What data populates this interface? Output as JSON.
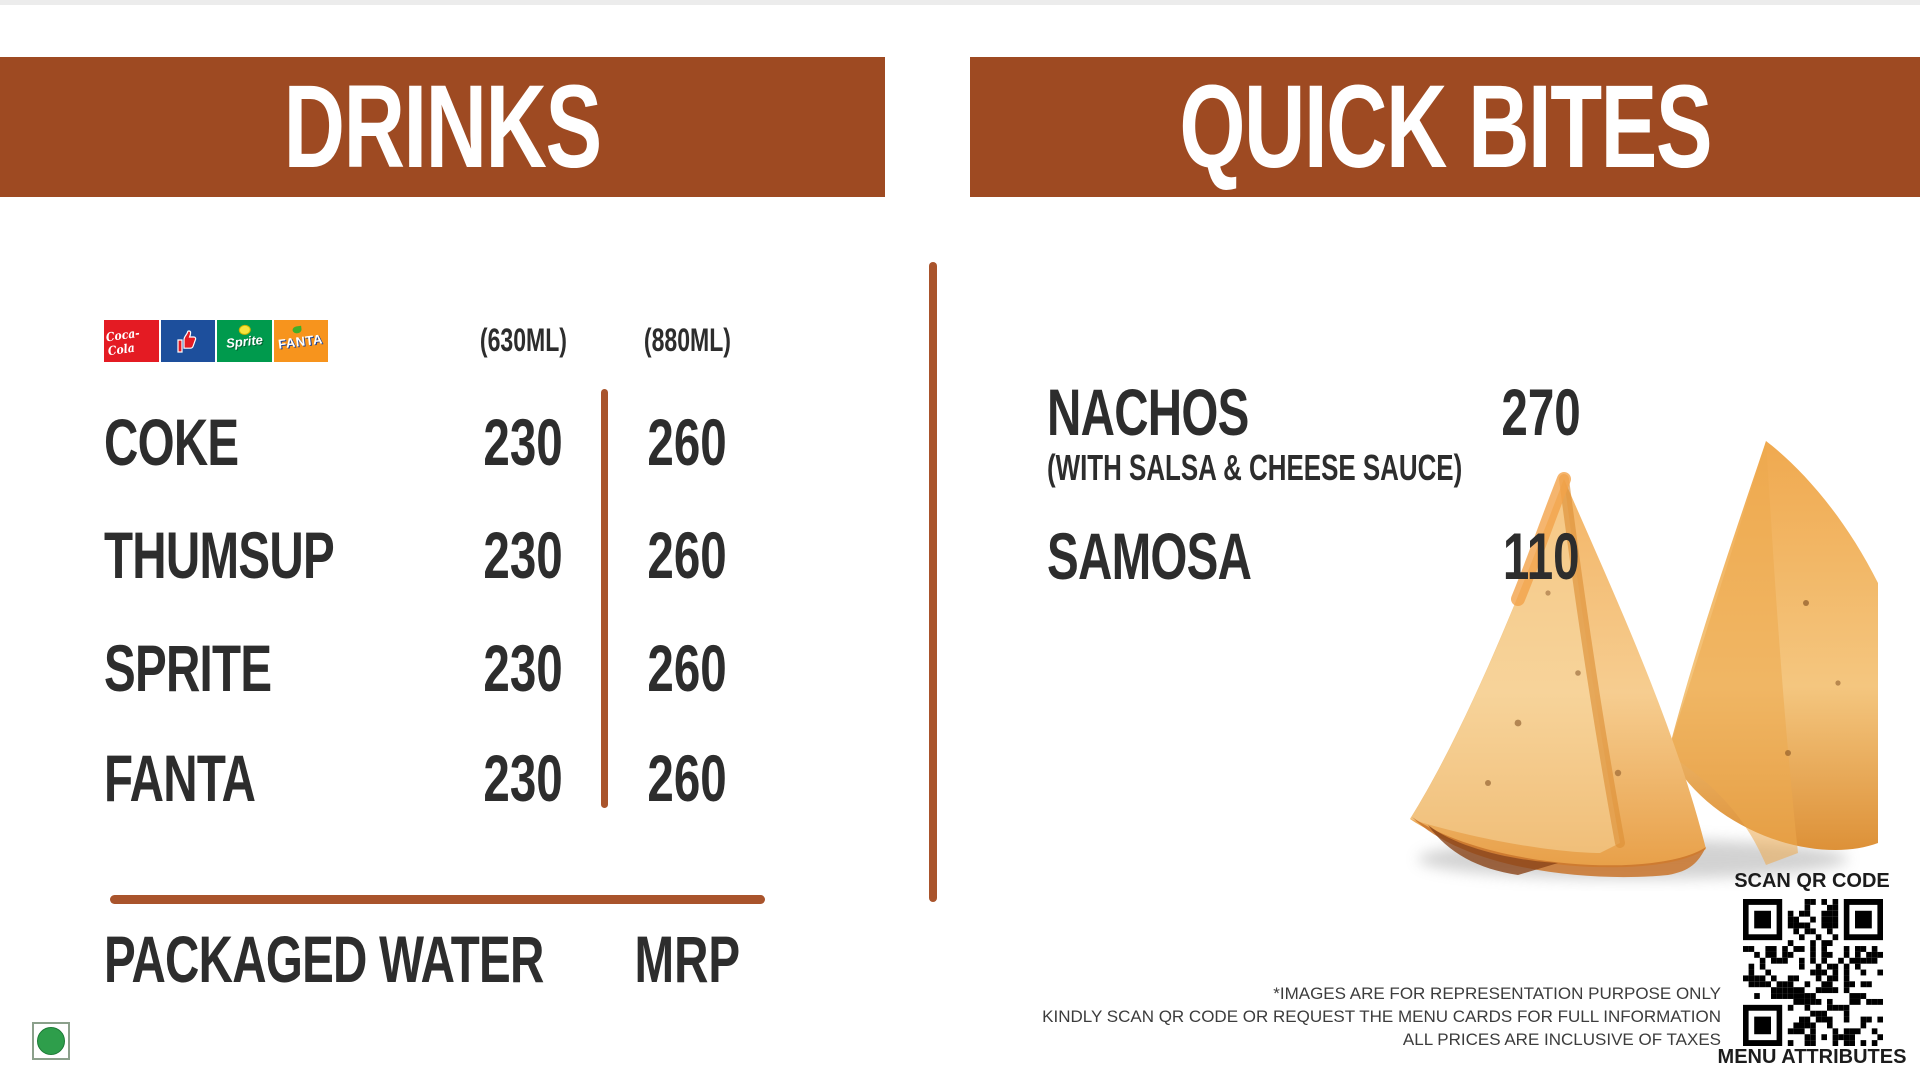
{
  "theme": {
    "brand_brown": "#9e4a22",
    "divider_brown": "#a9542c",
    "text_dark": "#2d2d2d",
    "veg_green": "#2e9e4b"
  },
  "drinks": {
    "header": "DRINKS",
    "brand_logos": [
      {
        "name": "coca-cola",
        "label": "Coca-Cola",
        "color": "#e41b23"
      },
      {
        "name": "thums-up",
        "label": "Thums Up",
        "color": "#1d4f9c"
      },
      {
        "name": "sprite",
        "label": "Sprite",
        "color": "#009a4d"
      },
      {
        "name": "fanta",
        "label": "FANTA",
        "color": "#f7941d"
      }
    ],
    "size_columns": [
      "(630ML)",
      "(880ML)"
    ],
    "items": [
      {
        "name": "COKE",
        "prices": [
          "230",
          "260"
        ]
      },
      {
        "name": "THUMSUP",
        "prices": [
          "230",
          "260"
        ]
      },
      {
        "name": "SPRITE",
        "prices": [
          "230",
          "260"
        ]
      },
      {
        "name": "FANTA",
        "prices": [
          "230",
          "260"
        ]
      }
    ],
    "water": {
      "name": "PACKAGED WATER",
      "price": "MRP"
    }
  },
  "quick_bites": {
    "header": "QUICK BITES",
    "items": [
      {
        "name": "NACHOS",
        "subtitle": "(WITH SALSA & CHEESE SAUCE)",
        "price": "270"
      },
      {
        "name": "SAMOSA",
        "subtitle": "",
        "price": "110"
      }
    ]
  },
  "footer": {
    "qr_label": "SCAN QR CODE",
    "qr_caption": "MENU ATTRIBUTES",
    "disclaimers": [
      "*IMAGES ARE FOR REPRESENTATION PURPOSE ONLY",
      "KINDLY SCAN QR CODE OR REQUEST THE MENU CARDS FOR FULL INFORMATION",
      "ALL PRICES ARE INCLUSIVE OF TAXES"
    ]
  },
  "veg_indicator": {
    "meaning": "veg"
  }
}
